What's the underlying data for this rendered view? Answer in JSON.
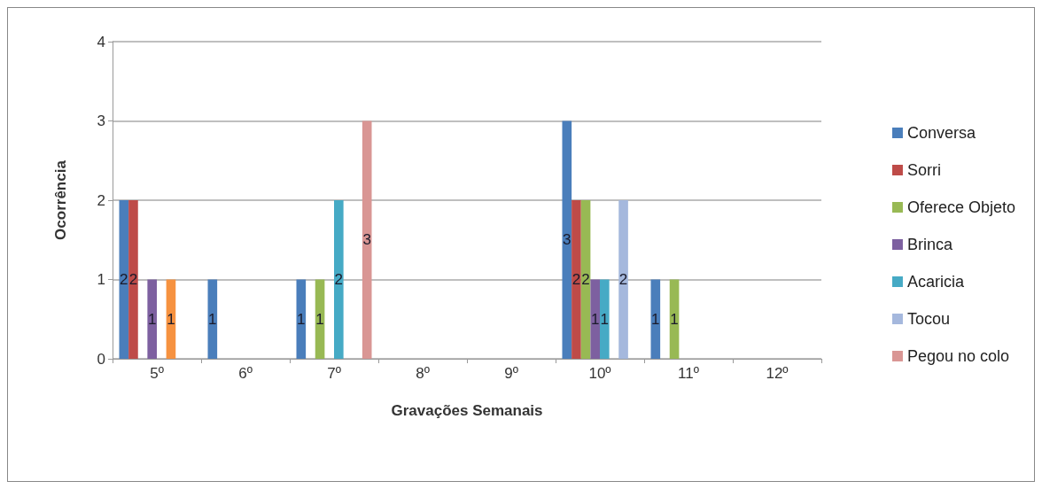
{
  "chart_data": {
    "type": "bar",
    "xlabel": "Gravações Semanais",
    "ylabel": "Ocorrência",
    "categories": [
      "5º",
      "6º",
      "7º",
      "8º",
      "9º",
      "10º",
      "11º",
      "12º"
    ],
    "series": [
      {
        "name": "Conversa",
        "color": "#4a7ebb",
        "values": [
          2,
          1,
          1,
          null,
          null,
          3,
          1,
          null
        ]
      },
      {
        "name": "Sorri",
        "color": "#be4b48",
        "values": [
          2,
          null,
          null,
          null,
          null,
          2,
          null,
          null
        ]
      },
      {
        "name": "Oferece Objeto",
        "color": "#98b954",
        "values": [
          null,
          null,
          1,
          null,
          null,
          2,
          1,
          null
        ]
      },
      {
        "name": "Brinca",
        "color": "#7d60a0",
        "values": [
          1,
          null,
          null,
          null,
          null,
          1,
          null,
          null
        ]
      },
      {
        "name": "Acaricia",
        "color": "#46aac5",
        "values": [
          null,
          null,
          2,
          null,
          null,
          1,
          null,
          null
        ]
      },
      {
        "color": "#f69240",
        "values": [
          1,
          null,
          null,
          null,
          null,
          null,
          null,
          null
        ]
      },
      {
        "name": "Tocou",
        "color": "#a5b8dd",
        "values": [
          null,
          null,
          null,
          null,
          null,
          2,
          null,
          null
        ]
      },
      {
        "name": "Pegou no colo",
        "color": "#d99694",
        "values": [
          null,
          null,
          3,
          null,
          null,
          null,
          null,
          null
        ]
      }
    ],
    "ylim": [
      0,
      4
    ],
    "yticks": [
      0,
      1,
      2,
      3,
      4
    ],
    "grid": "y",
    "legend": "right",
    "data_labels": true
  }
}
